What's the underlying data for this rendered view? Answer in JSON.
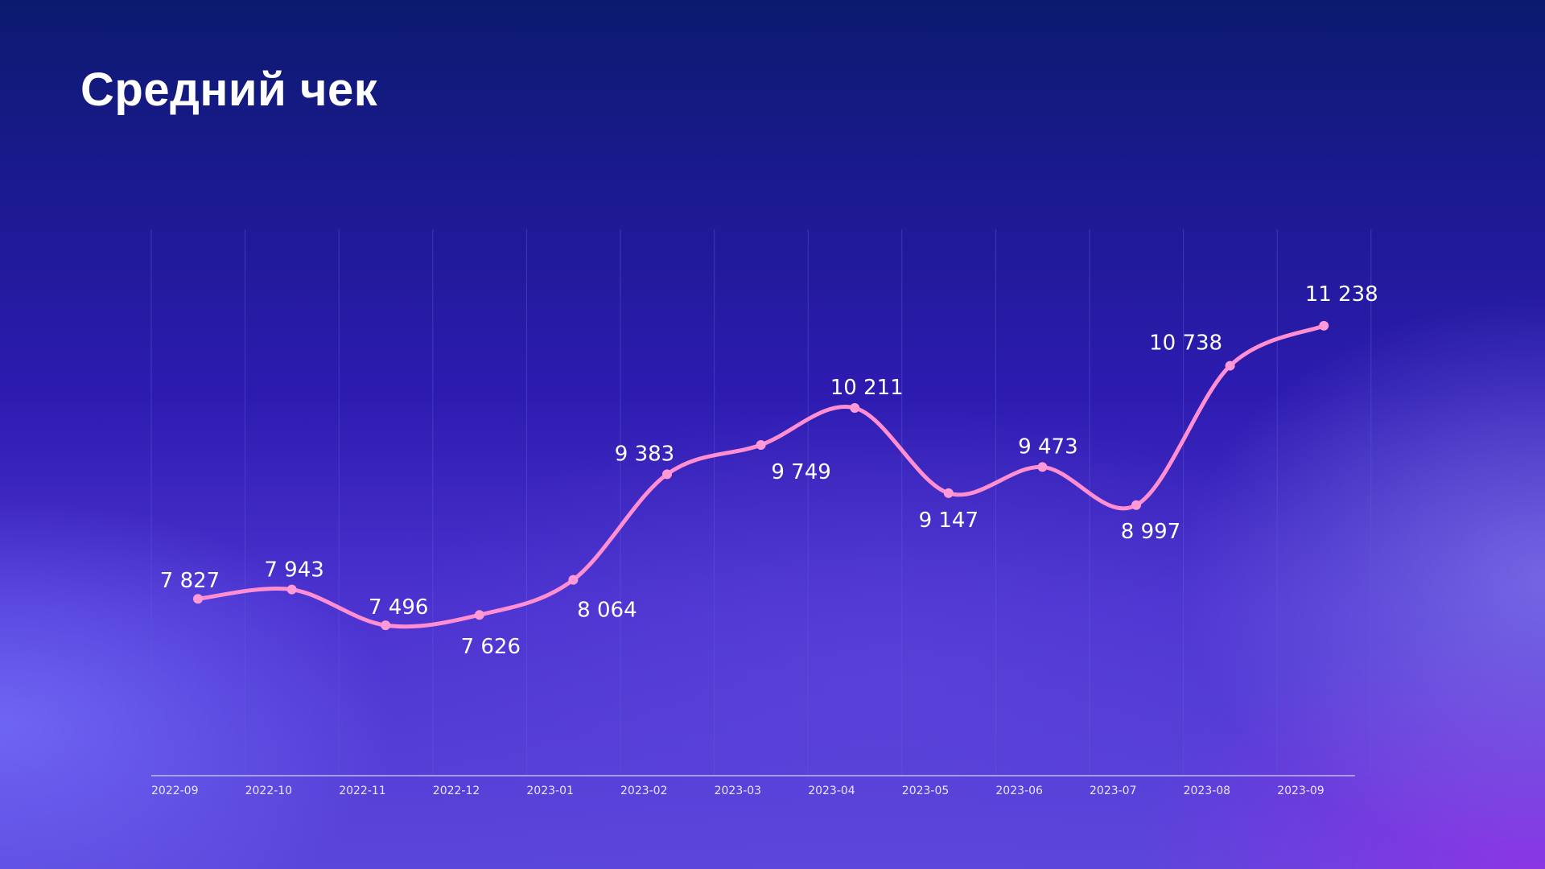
{
  "header": {
    "title": "Средний чек"
  },
  "colors": {
    "line": "#ff8fd0",
    "point": "#ff9ad6",
    "gridline": "#5a5fd8",
    "axis": "#c9c6ff",
    "label": "#ffffff"
  },
  "chart_data": {
    "type": "line",
    "title": "Средний чек",
    "xlabel": "",
    "ylabel": "",
    "grid": "vertical",
    "legend": "none",
    "categories": [
      "2022-09",
      "2022-10",
      "2022-11",
      "2022-12",
      "2023-01",
      "2023-02",
      "2023-03",
      "2023-04",
      "2023-05",
      "2023-06",
      "2023-07",
      "2023-08",
      "2023-09"
    ],
    "values": [
      7827,
      7943,
      7496,
      7626,
      8064,
      9383,
      9749,
      10211,
      9147,
      9473,
      8997,
      10738,
      11238
    ],
    "value_labels": [
      "7 827",
      "7 943",
      "7 496",
      "7 626",
      "8 064",
      "9 383",
      "9 749",
      "10 211",
      "9 147",
      "9 473",
      "8 997",
      "10 738",
      "11 238"
    ],
    "label_positions": [
      "above",
      "above",
      "above",
      "below",
      "below",
      "above",
      "below",
      "above",
      "below",
      "above",
      "below",
      "above",
      "above"
    ],
    "ylim": [
      4000,
      12000
    ]
  }
}
